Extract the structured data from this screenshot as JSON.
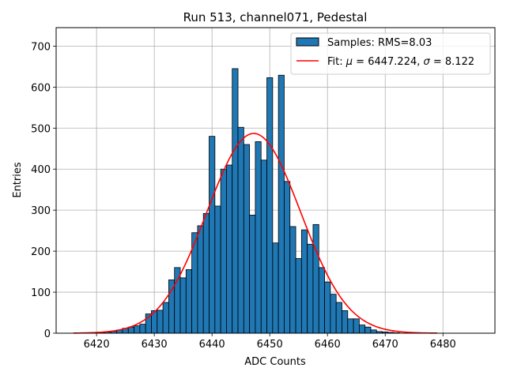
{
  "chart_data": {
    "type": "bar",
    "title": "Run 513, channel071, Pedestal",
    "xlabel": "ADC Counts",
    "ylabel": "Entries",
    "xlim": [
      6413,
      6489
    ],
    "ylim": [
      0,
      745
    ],
    "xticks": [
      6420,
      6430,
      6440,
      6450,
      6460,
      6470,
      6480
    ],
    "yticks": [
      0,
      100,
      200,
      300,
      400,
      500,
      600,
      700
    ],
    "grid": true,
    "legend_position": "top-right",
    "histogram": {
      "name": "Samples: RMS=8.03",
      "color": "#1f77b4",
      "bin_width": 1,
      "x": [
        6420,
        6421,
        6422,
        6423,
        6424,
        6425,
        6426,
        6427,
        6428,
        6429,
        6430,
        6431,
        6432,
        6433,
        6434,
        6435,
        6436,
        6437,
        6438,
        6439,
        6440,
        6441,
        6442,
        6443,
        6444,
        6445,
        6446,
        6447,
        6448,
        6449,
        6450,
        6451,
        6452,
        6453,
        6454,
        6455,
        6456,
        6457,
        6458,
        6459,
        6460,
        6461,
        6462,
        6463,
        6464,
        6465,
        6466,
        6467,
        6468,
        6469,
        6470,
        6471,
        6472
      ],
      "values": [
        1,
        2,
        3,
        5,
        8,
        12,
        15,
        18,
        22,
        47,
        55,
        56,
        75,
        130,
        160,
        135,
        155,
        245,
        262,
        292,
        480,
        310,
        400,
        410,
        645,
        502,
        460,
        288,
        467,
        422,
        623,
        220,
        629,
        370,
        260,
        182,
        252,
        217,
        265,
        160,
        125,
        95,
        75,
        55,
        35,
        35,
        20,
        15,
        8,
        4,
        3,
        2,
        1
      ]
    },
    "fit": {
      "name": "Fit: $\\mu$ = 6447.224, $\\sigma$ = 8.122",
      "mu": 6447.224,
      "sigma": 8.122,
      "amplitude": 487,
      "x_range": [
        6416,
        6479
      ],
      "color": "#ff0000"
    }
  },
  "legend": {
    "histogram_label": "Samples: RMS=8.03",
    "fit_label_prefix": "Fit: ",
    "fit_mu_symbol": "μ",
    "fit_mu_value": " = 6447.224, ",
    "fit_sigma_symbol": "σ",
    "fit_sigma_value": " = 8.122"
  }
}
